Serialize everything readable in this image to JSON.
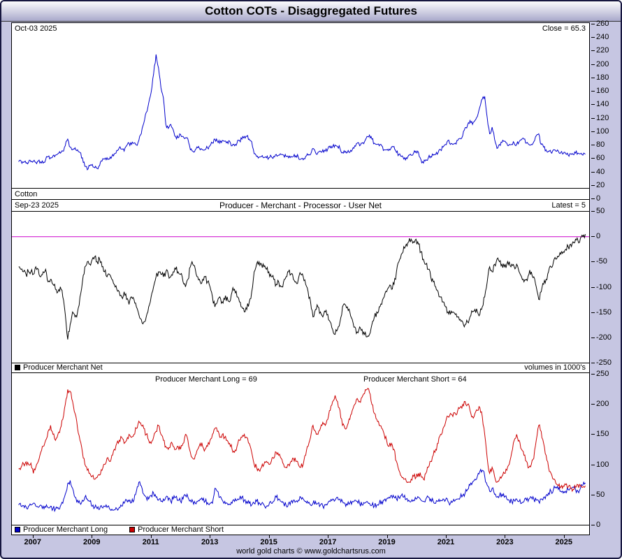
{
  "window": {
    "title": "Cotton COTs - Disaggregated Futures",
    "footer": "world gold charts © www.goldchartsrus.com"
  },
  "colors": {
    "frame_background": "#c6c6e2",
    "price_line": "#0000cc",
    "net_line": "#000000",
    "zero_line": "#cc00cc",
    "long_line": "#0000cc",
    "short_line": "#cc0000"
  },
  "panels": {
    "price": {
      "date": "Oct-03  2025",
      "close": "Close = 65.3",
      "name": "Cotton"
    },
    "net": {
      "date": "Sep-23  2025",
      "title": "Producer - Merchant - Processor - User Net",
      "latest": "Latest = 5",
      "legend": "Producer Merchant Net",
      "volumes_note": "volumes in 1000's"
    },
    "ls": {
      "long_label": "Producer Merchant Long = 69",
      "short_label": "Producer Merchant Short = 64",
      "legend_long": "Producer Merchant Long",
      "legend_short": "Producer Merchant Short"
    }
  },
  "chart_data": [
    {
      "type": "line",
      "title": "Cotton futures price",
      "x_start": 2006.5,
      "x_step": "monthly",
      "ylim": [
        0,
        260
      ],
      "yticks": [
        0,
        20,
        40,
        60,
        80,
        100,
        120,
        140,
        160,
        180,
        200,
        220,
        240,
        260
      ],
      "xticks": [
        2007,
        2009,
        2011,
        2013,
        2015,
        2017,
        2019,
        2021,
        2023,
        2025
      ],
      "annotations": {
        "date": "Oct-03 2025",
        "close": 65.3
      },
      "series": [
        {
          "name": "Cotton",
          "color": "#0000cc",
          "values": [
            54,
            55,
            53,
            52,
            53,
            54,
            55,
            53,
            55,
            54,
            52,
            57,
            62,
            60,
            63,
            64,
            66,
            67,
            70,
            78,
            88,
            76,
            72,
            75,
            72,
            68,
            60,
            47,
            42,
            48,
            50,
            45,
            44,
            48,
            55,
            58,
            60,
            58,
            62,
            66,
            71,
            75,
            73,
            70,
            78,
            82,
            80,
            82,
            79,
            86,
            96,
            112,
            128,
            142,
            158,
            185,
            215,
            195,
            165,
            150,
            110,
            104,
            110,
            102,
            92,
            90,
            95,
            92,
            90,
            88,
            72,
            70,
            72,
            75,
            72,
            72,
            72,
            75,
            78,
            82,
            88,
            85,
            82,
            86,
            85,
            84,
            85,
            78,
            78,
            82,
            86,
            88,
            92,
            92,
            88,
            84,
            66,
            62,
            61,
            62,
            60,
            60,
            60,
            62,
            62,
            65,
            64,
            65,
            64,
            62,
            60,
            62,
            62,
            63,
            61,
            58,
            57,
            62,
            64,
            65,
            74,
            68,
            68,
            70,
            72,
            70,
            73,
            75,
            77,
            79,
            77,
            74,
            68,
            68,
            68,
            68,
            72,
            78,
            82,
            78,
            82,
            84,
            92,
            94,
            88,
            82,
            80,
            78,
            78,
            72,
            72,
            73,
            76,
            77,
            68,
            65,
            62,
            58,
            60,
            64,
            64,
            67,
            70,
            68,
            57,
            52,
            57,
            60,
            62,
            64,
            65,
            68,
            72,
            76,
            80,
            86,
            80,
            80,
            82,
            86,
            89,
            93,
            105,
            109,
            116,
            110,
            116,
            122,
            136,
            148,
            152,
            120,
            96,
            106,
            88,
            74,
            80,
            83,
            85,
            82,
            80,
            80,
            82,
            80,
            84,
            87,
            88,
            82,
            80,
            80,
            84,
            93,
            96,
            80,
            76,
            72,
            70,
            68,
            72,
            70,
            70,
            68,
            66,
            66,
            64,
            66,
            65,
            67,
            67,
            66,
            64,
            65.3
          ]
        }
      ]
    },
    {
      "type": "line",
      "title": "Producer - Merchant - Processor - User Net",
      "x_start": 2006.5,
      "x_step": "monthly",
      "ylim": [
        -250,
        50
      ],
      "yticks": [
        -250,
        -200,
        -150,
        -100,
        -50,
        0,
        50
      ],
      "xticks": [
        2007,
        2009,
        2011,
        2013,
        2015,
        2017,
        2019,
        2021,
        2023,
        2025
      ],
      "zero_line": "#cc00cc",
      "units": "volumes in 1000's",
      "annotations": {
        "date": "Sep-23 2025",
        "latest": 5
      },
      "series": [
        {
          "name": "Producer Merchant Net",
          "color": "#000000",
          "values": [
            -60,
            -65,
            -70,
            -75,
            -70,
            -70,
            -75,
            -60,
            -65,
            -80,
            -70,
            -65,
            -90,
            -85,
            -95,
            -105,
            -110,
            -100,
            -120,
            -155,
            -205,
            -175,
            -150,
            -160,
            -150,
            -120,
            -90,
            -60,
            -50,
            -55,
            -45,
            -40,
            -50,
            -45,
            -60,
            -70,
            -80,
            -75,
            -85,
            -95,
            -105,
            -110,
            -120,
            -110,
            -125,
            -135,
            -120,
            -125,
            -140,
            -155,
            -165,
            -170,
            -160,
            -140,
            -120,
            -100,
            -80,
            -70,
            -75,
            -80,
            -70,
            -75,
            -80,
            -70,
            -65,
            -70,
            -75,
            -90,
            -100,
            -85,
            -60,
            -55,
            -65,
            -80,
            -90,
            -85,
            -80,
            -90,
            -100,
            -120,
            -140,
            -130,
            -120,
            -130,
            -125,
            -120,
            -130,
            -110,
            -105,
            -120,
            -130,
            -140,
            -150,
            -145,
            -130,
            -110,
            -70,
            -55,
            -50,
            -55,
            -60,
            -65,
            -70,
            -80,
            -85,
            -95,
            -90,
            -100,
            -90,
            -80,
            -70,
            -75,
            -85,
            -90,
            -85,
            -75,
            -80,
            -95,
            -110,
            -130,
            -160,
            -145,
            -140,
            -150,
            -160,
            -150,
            -155,
            -170,
            -185,
            -195,
            -185,
            -170,
            -140,
            -135,
            -140,
            -150,
            -165,
            -180,
            -190,
            -180,
            -185,
            -195,
            -200,
            -195,
            -175,
            -160,
            -150,
            -140,
            -135,
            -120,
            -110,
            -100,
            -105,
            -95,
            -70,
            -50,
            -35,
            -20,
            -15,
            -10,
            -5,
            -10,
            -5,
            -15,
            -30,
            -45,
            -55,
            -65,
            -80,
            -90,
            -100,
            -110,
            -120,
            -130,
            -140,
            -150,
            -155,
            -150,
            -155,
            -160,
            -165,
            -170,
            -175,
            -170,
            -160,
            -150,
            -145,
            -150,
            -155,
            -140,
            -120,
            -90,
            -60,
            -70,
            -55,
            -45,
            -50,
            -55,
            -60,
            -55,
            -50,
            -55,
            -60,
            -55,
            -70,
            -80,
            -90,
            -85,
            -75,
            -70,
            -80,
            -100,
            -125,
            -110,
            -95,
            -85,
            -70,
            -60,
            -50,
            -45,
            -40,
            -35,
            -30,
            -25,
            -20,
            -15,
            -10,
            -5,
            -8,
            -3,
            0,
            5
          ]
        }
      ]
    },
    {
      "type": "line",
      "title": "Producer Merchant Long and Short",
      "x_start": 2006.5,
      "x_step": "monthly",
      "ylim": [
        0,
        250
      ],
      "yticks": [
        0,
        50,
        100,
        150,
        200,
        250
      ],
      "xticks": [
        2007,
        2009,
        2011,
        2013,
        2015,
        2017,
        2019,
        2021,
        2023,
        2025
      ],
      "annotations": {
        "long_latest": 69,
        "short_latest": 64
      },
      "series": [
        {
          "name": "Producer Merchant Long",
          "color": "#0000cc",
          "values": [
            32,
            30,
            31,
            29,
            30,
            32,
            35,
            30,
            28,
            32,
            30,
            28,
            28,
            30,
            26,
            25,
            28,
            30,
            35,
            50,
            68,
            73,
            60,
            45,
            40,
            35,
            40,
            45,
            42,
            38,
            30,
            28,
            26,
            25,
            28,
            30,
            28,
            26,
            25,
            24,
            26,
            28,
            30,
            35,
            40,
            38,
            36,
            40,
            55,
            70,
            64,
            50,
            45,
            42,
            48,
            52,
            45,
            40,
            38,
            42,
            45,
            40,
            38,
            42,
            45,
            40,
            38,
            42,
            48,
            45,
            40,
            38,
            35,
            38,
            42,
            40,
            38,
            36,
            35,
            35,
            60,
            55,
            45,
            40,
            38,
            35,
            33,
            35,
            38,
            40,
            42,
            45,
            40,
            38,
            35,
            32,
            35,
            38,
            36,
            34,
            32,
            30,
            32,
            35,
            38,
            45,
            42,
            38,
            35,
            32,
            35,
            38,
            40,
            38,
            40,
            45,
            42,
            38,
            35,
            32,
            35,
            38,
            35,
            32,
            30,
            32,
            35,
            38,
            42,
            40,
            45,
            42,
            38,
            35,
            32,
            35,
            38,
            40,
            38,
            35,
            32,
            35,
            38,
            35,
            32,
            30,
            32,
            35,
            38,
            40,
            42,
            45,
            48,
            45,
            42,
            45,
            48,
            45,
            42,
            40,
            38,
            40,
            42,
            45,
            40,
            38,
            42,
            45,
            42,
            38,
            35,
            38,
            40,
            42,
            40,
            38,
            35,
            38,
            40,
            42,
            45,
            48,
            52,
            58,
            65,
            70,
            75,
            80,
            88,
            90,
            80,
            65,
            55,
            60,
            50,
            45,
            48,
            50,
            45,
            42,
            40,
            38,
            40,
            42,
            38,
            35,
            38,
            40,
            42,
            45,
            42,
            40,
            38,
            42,
            45,
            48,
            52,
            55,
            58,
            62,
            58,
            55,
            52,
            55,
            58,
            60,
            62,
            58,
            55,
            60,
            65,
            69
          ]
        },
        {
          "name": "Producer Merchant Short",
          "color": "#cc0000",
          "values": [
            92,
            95,
            101,
            104,
            100,
            102,
            85,
            95,
            105,
            120,
            130,
            140,
            155,
            165,
            150,
            140,
            150,
            160,
            175,
            200,
            225,
            222,
            205,
            185,
            160,
            140,
            120,
            100,
            90,
            85,
            80,
            75,
            78,
            82,
            90,
            100,
            110,
            105,
            115,
            125,
            135,
            140,
            145,
            135,
            140,
            150,
            145,
            150,
            160,
            172,
            165,
            160,
            150,
            140,
            135,
            145,
            155,
            165,
            150,
            140,
            130,
            125,
            135,
            130,
            125,
            130,
            125,
            135,
            150,
            140,
            120,
            110,
            115,
            125,
            135,
            130,
            125,
            130,
            140,
            150,
            160,
            155,
            145,
            150,
            145,
            140,
            135,
            125,
            120,
            130,
            140,
            145,
            150,
            145,
            135,
            120,
            100,
            95,
            90,
            95,
            100,
            105,
            100,
            105,
            110,
            120,
            115,
            110,
            100,
            95,
            100,
            105,
            110,
            105,
            100,
            95,
            100,
            115,
            130,
            145,
            165,
            155,
            150,
            160,
            170,
            165,
            175,
            190,
            205,
            215,
            205,
            190,
            165,
            160,
            165,
            175,
            190,
            200,
            210,
            205,
            212,
            218,
            225,
            220,
            200,
            185,
            175,
            165,
            160,
            150,
            140,
            130,
            135,
            125,
            105,
            90,
            80,
            75,
            72,
            70,
            75,
            80,
            78,
            85,
            80,
            75,
            85,
            95,
            105,
            115,
            125,
            135,
            150,
            160,
            170,
            180,
            185,
            180,
            185,
            190,
            195,
            200,
            205,
            200,
            190,
            180,
            185,
            190,
            195,
            180,
            150,
            110,
            85,
            95,
            80,
            70,
            75,
            80,
            85,
            90,
            100,
            120,
            140,
            150,
            140,
            125,
            115,
            105,
            95,
            100,
            110,
            140,
            165,
            155,
            135,
            115,
            95,
            85,
            75,
            68,
            64,
            62,
            64,
            66,
            62,
            60,
            58,
            62,
            66,
            64,
            62,
            64
          ]
        }
      ]
    }
  ]
}
